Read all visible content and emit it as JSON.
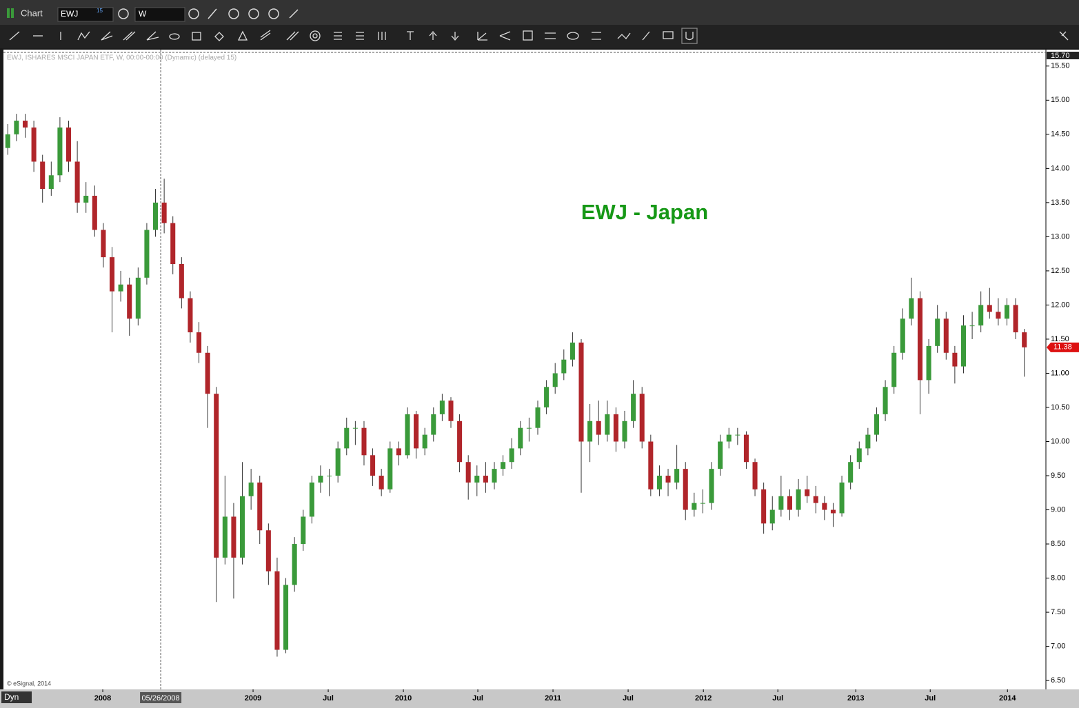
{
  "window": {
    "title": "Chart",
    "symbol": "EWJ",
    "symbol_badge": "15",
    "interval": "W",
    "status": "Dyn"
  },
  "chart_data": {
    "type": "candlestick",
    "info": "EWJ, ISHARES MSCI JAPAN ETF, W, 00:00-00:00 (Dynamic) (delayed 15)",
    "annotation": "EWJ - Japan",
    "copyright": "© eSignal, 2014",
    "up_color": "#3a9a3a",
    "down_color": "#b0252a",
    "annotation_color": "#169816",
    "open": [
      14.3,
      14.5,
      14.7,
      14.6,
      14.1,
      13.7,
      13.9,
      14.6,
      14.1,
      13.5,
      13.6,
      13.1,
      12.7,
      12.2,
      12.3,
      11.8,
      12.4,
      13.1,
      13.5,
      13.2,
      12.6,
      12.1,
      11.6,
      11.3,
      10.7,
      8.3,
      8.9,
      8.3,
      9.2,
      9.4,
      8.7,
      8.1,
      6.95,
      7.9,
      8.5,
      8.9,
      9.4,
      9.5,
      9.5,
      9.9,
      10.2,
      10.2,
      9.8,
      9.5,
      9.3,
      9.9,
      9.8,
      10.4,
      9.9,
      10.1,
      10.4,
      10.6,
      10.3,
      9.7,
      9.4,
      9.5,
      9.4,
      9.6,
      9.7,
      9.9,
      10.2,
      10.2,
      10.5,
      10.8,
      11.0,
      11.2,
      11.45,
      10.0,
      10.3,
      10.1,
      10.4,
      10.0,
      10.3,
      10.7,
      10.0,
      9.3,
      9.5,
      9.4,
      9.6,
      9.0,
      9.1,
      9.1,
      9.6,
      10.0,
      10.1,
      10.1,
      9.7,
      9.3,
      8.8,
      9.0,
      9.2,
      9.0,
      9.3,
      9.2,
      9.1,
      9.0,
      8.95,
      9.4,
      9.7,
      9.9,
      10.1,
      10.4,
      10.8,
      11.3,
      11.8,
      12.1,
      10.9,
      11.4,
      11.8,
      11.3,
      11.1,
      11.7,
      11.7,
      12.0,
      11.9,
      11.8,
      12.0,
      11.6
    ],
    "high": [
      14.65,
      14.8,
      14.8,
      14.7,
      14.2,
      14.1,
      14.75,
      14.7,
      14.4,
      13.8,
      13.75,
      13.2,
      12.85,
      12.5,
      12.4,
      12.55,
      13.2,
      13.7,
      13.85,
      13.3,
      12.7,
      12.2,
      11.75,
      11.4,
      10.8,
      9.5,
      9.1,
      9.7,
      9.6,
      9.5,
      8.8,
      8.3,
      8.0,
      8.6,
      9.0,
      9.5,
      9.65,
      9.6,
      10.0,
      10.35,
      10.3,
      10.3,
      9.9,
      9.6,
      10.0,
      10.0,
      10.5,
      10.45,
      10.2,
      10.5,
      10.7,
      10.65,
      10.4,
      9.8,
      9.65,
      9.7,
      9.7,
      9.8,
      10.05,
      10.3,
      10.35,
      10.6,
      10.9,
      11.15,
      11.35,
      11.6,
      11.5,
      10.55,
      10.6,
      10.6,
      10.5,
      10.45,
      10.9,
      10.8,
      10.1,
      9.65,
      9.6,
      9.95,
      9.7,
      9.25,
      9.3,
      9.7,
      10.1,
      10.2,
      10.2,
      10.15,
      9.75,
      9.4,
      9.2,
      9.5,
      9.3,
      9.45,
      9.5,
      9.35,
      9.2,
      9.1,
      9.5,
      9.8,
      10.0,
      10.2,
      10.5,
      10.9,
      11.4,
      11.95,
      12.4,
      12.2,
      11.5,
      12.0,
      11.9,
      11.4,
      11.85,
      11.9,
      12.2,
      12.25,
      12.1,
      12.1,
      12.1,
      11.65
    ],
    "low": [
      14.2,
      14.4,
      14.45,
      13.95,
      13.5,
      13.6,
      13.8,
      13.95,
      13.35,
      13.35,
      13.0,
      12.55,
      11.6,
      12.05,
      11.55,
      11.7,
      12.3,
      13.0,
      13.05,
      12.45,
      11.95,
      11.45,
      11.15,
      10.2,
      7.65,
      8.2,
      7.7,
      8.2,
      9.0,
      8.5,
      7.9,
      6.85,
      6.9,
      7.8,
      8.4,
      8.8,
      9.25,
      9.2,
      9.4,
      9.8,
      9.95,
      9.65,
      9.35,
      9.2,
      9.25,
      9.65,
      9.75,
      9.75,
      9.8,
      10.0,
      10.3,
      10.2,
      9.55,
      9.15,
      9.2,
      9.25,
      9.3,
      9.5,
      9.6,
      9.8,
      10.0,
      10.1,
      10.4,
      10.7,
      10.9,
      11.1,
      9.25,
      9.7,
      9.95,
      10.0,
      9.85,
      9.9,
      10.2,
      9.9,
      9.2,
      9.2,
      9.2,
      9.3,
      8.85,
      8.9,
      8.95,
      9.0,
      9.5,
      9.9,
      9.95,
      9.6,
      9.2,
      8.65,
      8.7,
      8.9,
      8.85,
      8.9,
      9.1,
      8.95,
      8.85,
      8.75,
      8.9,
      9.3,
      9.6,
      9.8,
      10.0,
      10.3,
      10.7,
      11.2,
      11.7,
      10.4,
      10.7,
      11.3,
      11.2,
      10.85,
      11.0,
      11.5,
      11.6,
      11.8,
      11.7,
      11.7,
      11.5,
      10.95
    ],
    "close": [
      14.5,
      14.7,
      14.6,
      14.1,
      13.7,
      13.9,
      14.6,
      14.1,
      13.5,
      13.6,
      13.1,
      12.7,
      12.2,
      12.3,
      11.8,
      12.4,
      13.1,
      13.5,
      13.2,
      12.6,
      12.1,
      11.6,
      11.3,
      10.7,
      8.3,
      8.9,
      8.3,
      9.2,
      9.4,
      8.7,
      8.1,
      6.95,
      7.9,
      8.5,
      8.9,
      9.4,
      9.5,
      9.5,
      9.9,
      10.2,
      10.2,
      9.8,
      9.5,
      9.3,
      9.9,
      9.8,
      10.4,
      9.9,
      10.1,
      10.4,
      10.6,
      10.3,
      9.7,
      9.4,
      9.5,
      9.4,
      9.6,
      9.7,
      9.9,
      10.2,
      10.2,
      10.5,
      10.8,
      11.0,
      11.2,
      11.45,
      10.0,
      10.3,
      10.1,
      10.4,
      10.0,
      10.3,
      10.7,
      10.0,
      9.3,
      9.5,
      9.4,
      9.6,
      9.0,
      9.1,
      9.1,
      9.6,
      10.0,
      10.1,
      10.1,
      9.7,
      9.3,
      8.8,
      9.0,
      9.2,
      9.0,
      9.3,
      9.2,
      9.1,
      9.0,
      8.95,
      9.4,
      9.7,
      9.9,
      10.1,
      10.4,
      10.8,
      11.3,
      11.8,
      12.1,
      10.9,
      11.4,
      11.8,
      11.3,
      11.1,
      11.7,
      11.7,
      12.0,
      11.9,
      11.8,
      12.0,
      11.6,
      11.38
    ],
    "ylim": [
      6.37,
      15.7
    ],
    "yticks": [
      {
        "value": 6.5,
        "label": "6.50"
      },
      {
        "value": 7,
        "label": "7.00"
      },
      {
        "value": 7.5,
        "label": "7.50"
      },
      {
        "value": 8,
        "label": "8.00"
      },
      {
        "value": 8.5,
        "label": "8.50"
      },
      {
        "value": 9,
        "label": "9.00"
      },
      {
        "value": 9.5,
        "label": "9.50"
      },
      {
        "value": 10,
        "label": "10.00"
      },
      {
        "value": 10.5,
        "label": "10.50"
      },
      {
        "value": 11,
        "label": "11.00"
      },
      {
        "value": 11.5,
        "label": "11.50"
      },
      {
        "value": 12,
        "label": "12.00"
      },
      {
        "value": 12.5,
        "label": "12.50"
      },
      {
        "value": 13,
        "label": "13.00"
      },
      {
        "value": 13.5,
        "label": "13.50"
      },
      {
        "value": 14,
        "label": "14.00"
      },
      {
        "value": 14.5,
        "label": "14.50"
      },
      {
        "value": 15,
        "label": "15.00"
      },
      {
        "value": 15.5,
        "label": "15.50"
      }
    ],
    "xticks": [
      {
        "value": 10.93,
        "label": "2008"
      },
      {
        "value": 28.23,
        "label": "2009"
      },
      {
        "value": 36.88,
        "label": "Jul"
      },
      {
        "value": 45.53,
        "label": "2010"
      },
      {
        "value": 54.1,
        "label": "Jul"
      },
      {
        "value": 62.75,
        "label": "2011"
      },
      {
        "value": 71.4,
        "label": "Jul"
      },
      {
        "value": 80.06,
        "label": "2012"
      },
      {
        "value": 88.63,
        "label": "Jul"
      },
      {
        "value": 97.6,
        "label": "2013"
      },
      {
        "value": 106.17,
        "label": "Jul"
      },
      {
        "value": 115.06,
        "label": "2014"
      }
    ],
    "crosshair": {
      "x": {
        "value": 17.6,
        "label": "05/26/2008"
      },
      "y": {
        "value": 15.7,
        "label": "15.70"
      }
    }
  }
}
